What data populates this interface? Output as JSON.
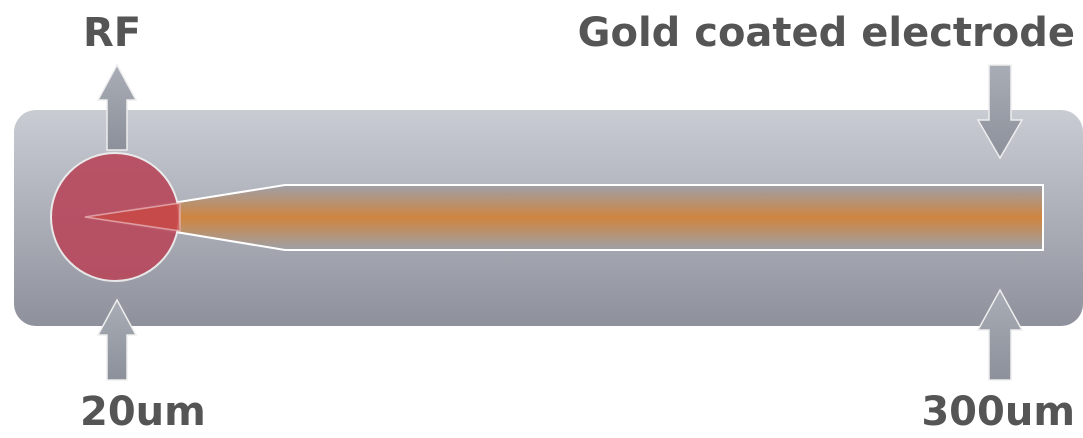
{
  "labels": {
    "rf": "RF",
    "electrode": "Gold coated electrode",
    "left_size": "20um",
    "right_size": "300um"
  }
}
